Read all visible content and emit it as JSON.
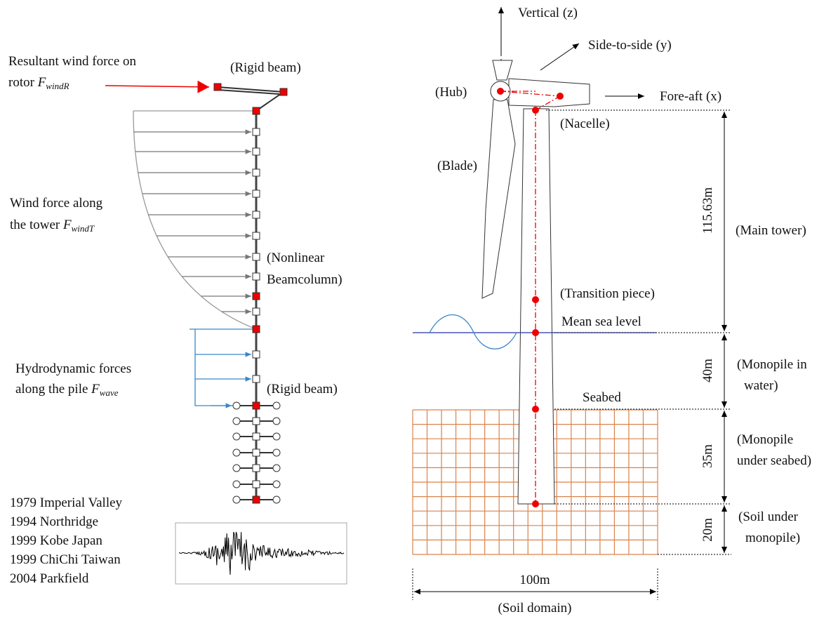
{
  "left": {
    "rotor_force": {
      "line1": "Resultant wind force on",
      "line2": "rotor",
      "symbol": "F",
      "subscript": "windR"
    },
    "rigid_beam_top": "(Rigid beam)",
    "tower_wind": {
      "line1": "Wind force along",
      "line2": "the tower",
      "symbol": "F",
      "subscript": "windT"
    },
    "beamcolumn": [
      "(Nonlinear",
      "Beamcolumn)"
    ],
    "hydro": {
      "line1": "Hydrodynamic forces",
      "line2": "along the pile",
      "symbol": "F",
      "subscript": "wave"
    },
    "rigid_beam_bottom": "(Rigid beam)",
    "earthquakes": [
      "1979 Imperial Valley",
      "1994 Northridge",
      "1999 Kobe Japan",
      "1999 ChiChi Taiwan",
      "2004 Parkfield"
    ]
  },
  "right": {
    "axes": {
      "vertical": "Vertical (z)",
      "side": "Side-to-side (y)",
      "fore_aft": "Fore-aft (x)"
    },
    "hub": "(Hub)",
    "nacelle": "(Nacelle)",
    "blade": "(Blade)",
    "transition": "(Transition piece)",
    "sea_level": "Mean sea level",
    "seabed": "Seabed",
    "dimensions": [
      "115.63m",
      "40m",
      "35m",
      "20m",
      "100m"
    ],
    "main_tower": "(Main tower)",
    "monopile_water": [
      "(Monopile in",
      "water)"
    ],
    "monopile_seabed": [
      "(Monopile",
      "under seabed)"
    ],
    "soil_under": [
      "(Soil under",
      "monopile)"
    ],
    "soil_domain": "(Soil domain)"
  }
}
